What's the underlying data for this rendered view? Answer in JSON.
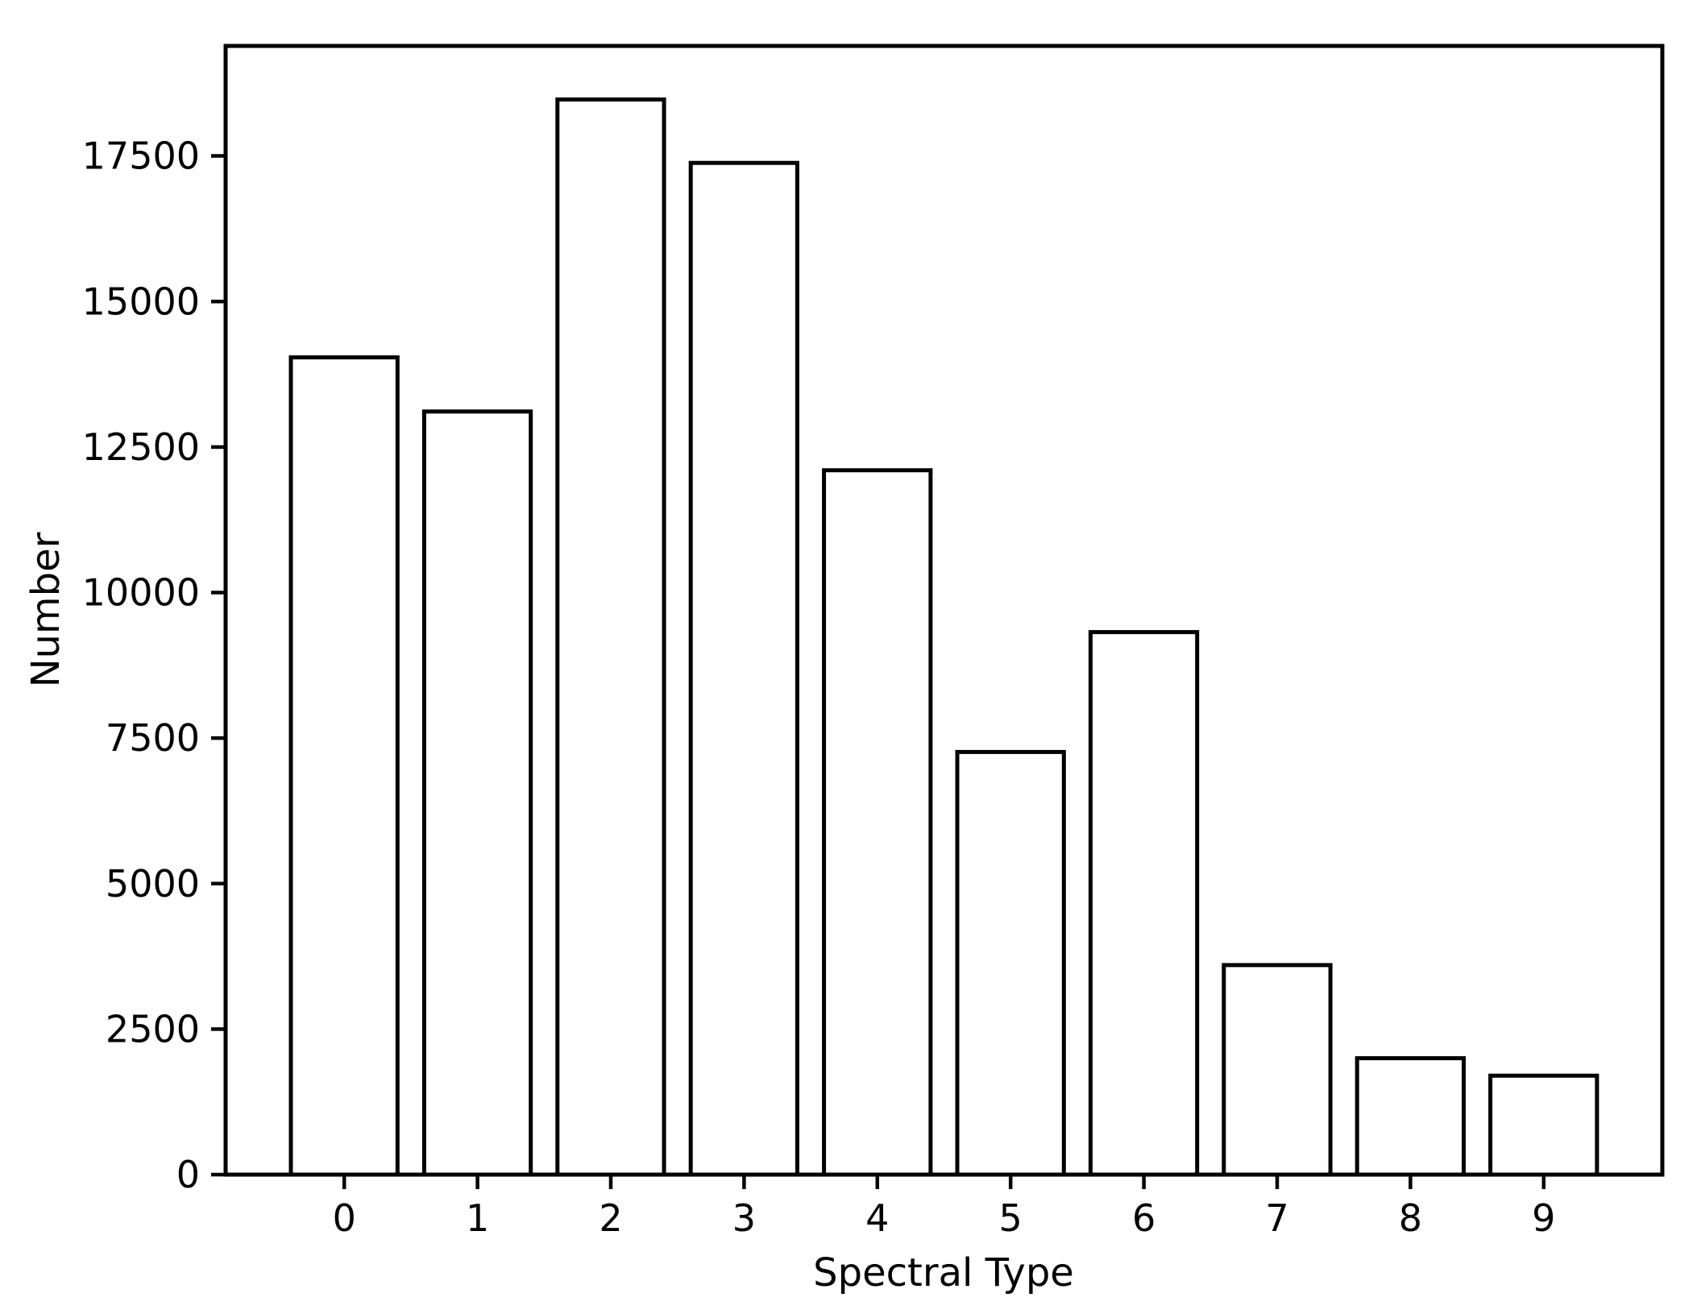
{
  "chart_data": {
    "type": "bar",
    "xlabel": "Spectral Type",
    "ylabel": "Number",
    "categories": [
      "0",
      "1",
      "2",
      "3",
      "4",
      "5",
      "6",
      "7",
      "8",
      "9"
    ],
    "values": [
      14040,
      13110,
      18470,
      17380,
      12100,
      7260,
      9320,
      3600,
      2000,
      1700
    ],
    "ytick_values": [
      0,
      2500,
      5000,
      7500,
      10000,
      12500,
      15000,
      17500
    ],
    "ytick_labels": [
      "0",
      "2500",
      "5000",
      "7500",
      "10000",
      "12500",
      "15000",
      "17500"
    ],
    "xlim": [
      -0.89,
      9.89
    ],
    "ylim": [
      0,
      19390
    ],
    "bar_width": 0.8,
    "grid": false,
    "legend_position": "none",
    "colors": {
      "background": "#ffffff",
      "bar_fill": "#ffffff",
      "bar_edge": "#000000",
      "spine": "#000000",
      "text": "#000000"
    }
  }
}
